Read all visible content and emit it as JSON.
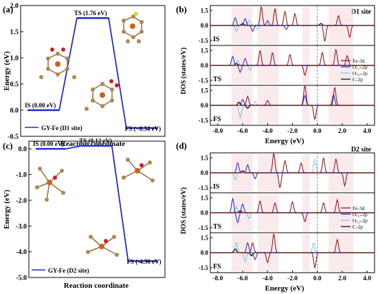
{
  "panels": {
    "a": {
      "tag": "(a)",
      "ylabel": "Energy (eV)",
      "xlabel": "Reaction coordinate",
      "legend": "GY-Fe (D1 site)"
    },
    "b": {
      "tag": "(b)",
      "site": "D1 site",
      "ylabel": "DOS (states/eV)",
      "xlabel": "Energy (eV)"
    },
    "c": {
      "tag": "(c)",
      "ylabel": "Energy (eV)",
      "xlabel": "Reaction coordinate",
      "legend": "GY-Fe (D2 site)"
    },
    "d": {
      "tag": "(d)",
      "site": "D2 site",
      "ylabel": "DOS (states/eV)",
      "xlabel": "Energy (eV)"
    }
  },
  "dos_legend": [
    "Fe-3d",
    "O₍₁₎-2p",
    "O₍₂₎-2p",
    "C-2p"
  ],
  "colors": {
    "fe3d": "#8b1a1a",
    "o1": "#3030c8",
    "o2": "#1ab0d8",
    "c2p": "#111111",
    "profile": "#1e2bd0",
    "bands": "#f6d8dc"
  },
  "chart_data": [
    {
      "type": "line",
      "title": "",
      "xlabel": "Reaction coordinate",
      "ylabel": "Energy (eV)",
      "ylim": [
        -0.5,
        2.0
      ],
      "yticks": [
        -0.5,
        0.0,
        0.5,
        1.0,
        1.5,
        2.0
      ],
      "ytick_labels": [
        "-0.5",
        "0.0",
        "0.5",
        "1.0",
        "1.5",
        "2.0"
      ],
      "series": [
        {
          "name": "GY-Fe (D1 site)",
          "values": [
            0.0,
            1.76,
            -0.34
          ]
        }
      ],
      "states": [
        "IS",
        "TS",
        "FS"
      ],
      "state_labels": [
        "IS (0.00 eV)",
        "TS (1.76 eV)",
        "FS (−0.34 eV)"
      ]
    },
    {
      "type": "line",
      "title": "",
      "xlabel": "Reaction coordinate",
      "ylabel": "Energy (eV)",
      "ylim": [
        -5.0,
        0.3
      ],
      "yticks": [
        0.0,
        -1.0,
        -2.0,
        -3.0,
        -4.0,
        -5.0
      ],
      "ytick_labels": [
        "0.0",
        "-1.0",
        "-2.0",
        "-3.0",
        "-4.0",
        "-5.0"
      ],
      "series": [
        {
          "name": "GY-Fe (D2 site)",
          "values": [
            0.0,
            0.12,
            -4.36
          ]
        }
      ],
      "states": [
        "IS",
        "TS",
        "FS"
      ],
      "state_labels": [
        "IS (0.00 eV)",
        "TS (0.12 eV)",
        "FS (-4.36 eV)"
      ]
    },
    {
      "type": "line",
      "title": "D1 site",
      "xlabel": "Energy (eV)",
      "ylabel": "DOS (states/eV)",
      "xlim": [
        -8.6,
        4.6
      ],
      "xticks": [
        -8.0,
        -6.0,
        -4.0,
        -2.0,
        0.0,
        2.0,
        4.0
      ],
      "xtick_labels": [
        "-8.0",
        "-6.0",
        "-4.0",
        "-2.0",
        "0.0",
        "2.0",
        "4.0"
      ],
      "subpanels": [
        {
          "state": "IS",
          "ylim": [
            -2.0,
            2.0
          ],
          "yticks": [
            1.5,
            0.0,
            -1.5
          ],
          "ytick_labels": [
            "1.5",
            "0.0",
            "-1.5"
          ],
          "peaks": {
            "Fe-3d": [
              [
                -4.5,
                1.9
              ],
              [
                -3.4,
                1.7
              ],
              [
                -2.6,
                1.4
              ],
              [
                -1.8,
                1.2
              ],
              [
                0.6,
                -1.6
              ],
              [
                1.7,
                1.0
              ],
              [
                2.6,
                -1.2
              ]
            ],
            "O1-2p": [
              [
                -6.6,
                0.8
              ],
              [
                -5.8,
                0.7
              ],
              [
                -5.2,
                -0.6
              ],
              [
                -4.0,
                0.5
              ],
              [
                -2.5,
                -0.4
              ]
            ],
            "O2-2p": [
              [
                -6.5,
                -0.6
              ],
              [
                -5.5,
                0.5
              ],
              [
                -4.8,
                -0.4
              ]
            ],
            "C-2p": [
              [
                -6.0,
                0.2
              ],
              [
                0.3,
                0.2
              ]
            ]
          }
        },
        {
          "state": "TS",
          "ylim": [
            -2.0,
            2.0
          ],
          "yticks": [
            1.5,
            0.0,
            -1.5
          ],
          "ytick_labels": [
            "1.5",
            "0.0",
            "-1.5"
          ],
          "peaks": {
            "Fe-3d": [
              [
                -4.6,
                1.5
              ],
              [
                -3.6,
                1.3
              ],
              [
                -2.2,
                1.1
              ],
              [
                0.4,
                1.3
              ],
              [
                1.5,
                1.6
              ],
              [
                2.4,
                1.0
              ],
              [
                -1.0,
                -1.0
              ]
            ],
            "O1-2p": [
              [
                -6.8,
                0.9
              ],
              [
                -5.8,
                0.7
              ],
              [
                -6.2,
                -0.7
              ]
            ],
            "O2-2p": [
              [
                -6.4,
                0.5
              ],
              [
                -5.4,
                -0.5
              ]
            ],
            "C-2p": [
              [
                -6.5,
                0.2
              ]
            ]
          }
        },
        {
          "state": "FS",
          "ylim": [
            -2.0,
            2.0
          ],
          "yticks": [
            1.5,
            0.0,
            -1.5
          ],
          "ytick_labels": [
            "1.5",
            "0.0",
            "-1.5"
          ],
          "peaks": {
            "Fe-3d": [
              [
                -5.6,
                0.9
              ],
              [
                -4.0,
                0.5
              ],
              [
                -1.0,
                2.0
              ],
              [
                1.4,
                1.8
              ],
              [
                -0.2,
                -1.4
              ]
            ],
            "O1-2p": [
              [
                -6.0,
                0.6
              ],
              [
                -1.0,
                1.0
              ],
              [
                1.3,
                1.1
              ]
            ],
            "O2-2p": [
              [
                -6.2,
                -1.3
              ],
              [
                -5.0,
                0.4
              ]
            ],
            "C-2p": [
              [
                -6.3,
                0.3
              ],
              [
                -5.6,
                -0.3
              ]
            ]
          }
        }
      ]
    },
    {
      "type": "line",
      "title": "D2 site",
      "xlabel": "Energy (eV)",
      "ylabel": "DOS (states/eV)",
      "xlim": [
        -8.6,
        4.6
      ],
      "xticks": [
        -8.0,
        -6.0,
        -4.0,
        -2.0,
        0.0,
        2.0,
        4.0
      ],
      "xtick_labels": [
        "-8.0",
        "-6.0",
        "-4.0",
        "-2.0",
        "0.0",
        "2.0",
        "4.0"
      ],
      "subpanels": [
        {
          "state": "IS",
          "ylim": [
            -2.0,
            2.0
          ],
          "yticks": [
            1.5,
            0.0,
            -1.5
          ],
          "ytick_labels": [
            "1.5",
            "0.0",
            "-1.5"
          ],
          "peaks": {
            "Fe-3d": [
              [
                -3.5,
                2.0
              ],
              [
                -2.6,
                1.2
              ],
              [
                -1.3,
                1.0
              ],
              [
                0.5,
                1.5
              ],
              [
                1.5,
                1.4
              ],
              [
                -3.0,
                -1.5
              ],
              [
                2.2,
                -1.3
              ]
            ],
            "O1-2p": [
              [
                -6.4,
                1.0
              ],
              [
                -5.6,
                0.8
              ],
              [
                -5.0,
                -0.6
              ]
            ],
            "O2-2p": [
              [
                -6.6,
                -0.7
              ],
              [
                -0.2,
                1.3
              ]
            ],
            "C-2p": [
              [
                -6.0,
                0.2
              ]
            ]
          }
        },
        {
          "state": "TS",
          "ylim": [
            -2.0,
            2.0
          ],
          "yticks": [
            1.5,
            0.0,
            -1.5
          ],
          "ytick_labels": [
            "1.5",
            "0.0",
            "-1.5"
          ],
          "peaks": {
            "Fe-3d": [
              [
                -4.6,
                1.2
              ],
              [
                -3.4,
                1.0
              ],
              [
                -2.0,
                1.1
              ],
              [
                0.5,
                1.0
              ],
              [
                1.6,
                1.3
              ],
              [
                -1.0,
                -0.9
              ]
            ],
            "O1-2p": [
              [
                -6.8,
                1.4
              ],
              [
                -6.0,
                0.9
              ],
              [
                -6.4,
                -1.0
              ]
            ],
            "O2-2p": [
              [
                -6.5,
                0.6
              ],
              [
                -5.5,
                -0.6
              ]
            ],
            "C-2p": [
              [
                -6.2,
                0.2
              ]
            ]
          }
        },
        {
          "state": "FS",
          "ylim": [
            -2.0,
            2.0
          ],
          "yticks": [
            1.5,
            0.0,
            -1.5
          ],
          "ytick_labels": [
            "1.5",
            "0.0",
            "-1.5"
          ],
          "peaks": {
            "Fe-3d": [
              [
                -3.5,
                1.9
              ],
              [
                -5.2,
                1.0
              ],
              [
                -0.2,
                -1.5
              ],
              [
                1.6,
                1.3
              ],
              [
                -4.0,
                -1.0
              ]
            ],
            "O1-2p": [
              [
                -5.6,
                1.0
              ],
              [
                -5.0,
                -0.7
              ]
            ],
            "O2-2p": [
              [
                -6.5,
                1.0
              ],
              [
                -5.8,
                -0.9
              ],
              [
                -0.3,
                1.0
              ]
            ],
            "C-2p": [
              [
                -6.6,
                0.4
              ],
              [
                -5.3,
                -0.3
              ]
            ]
          }
        }
      ]
    }
  ]
}
